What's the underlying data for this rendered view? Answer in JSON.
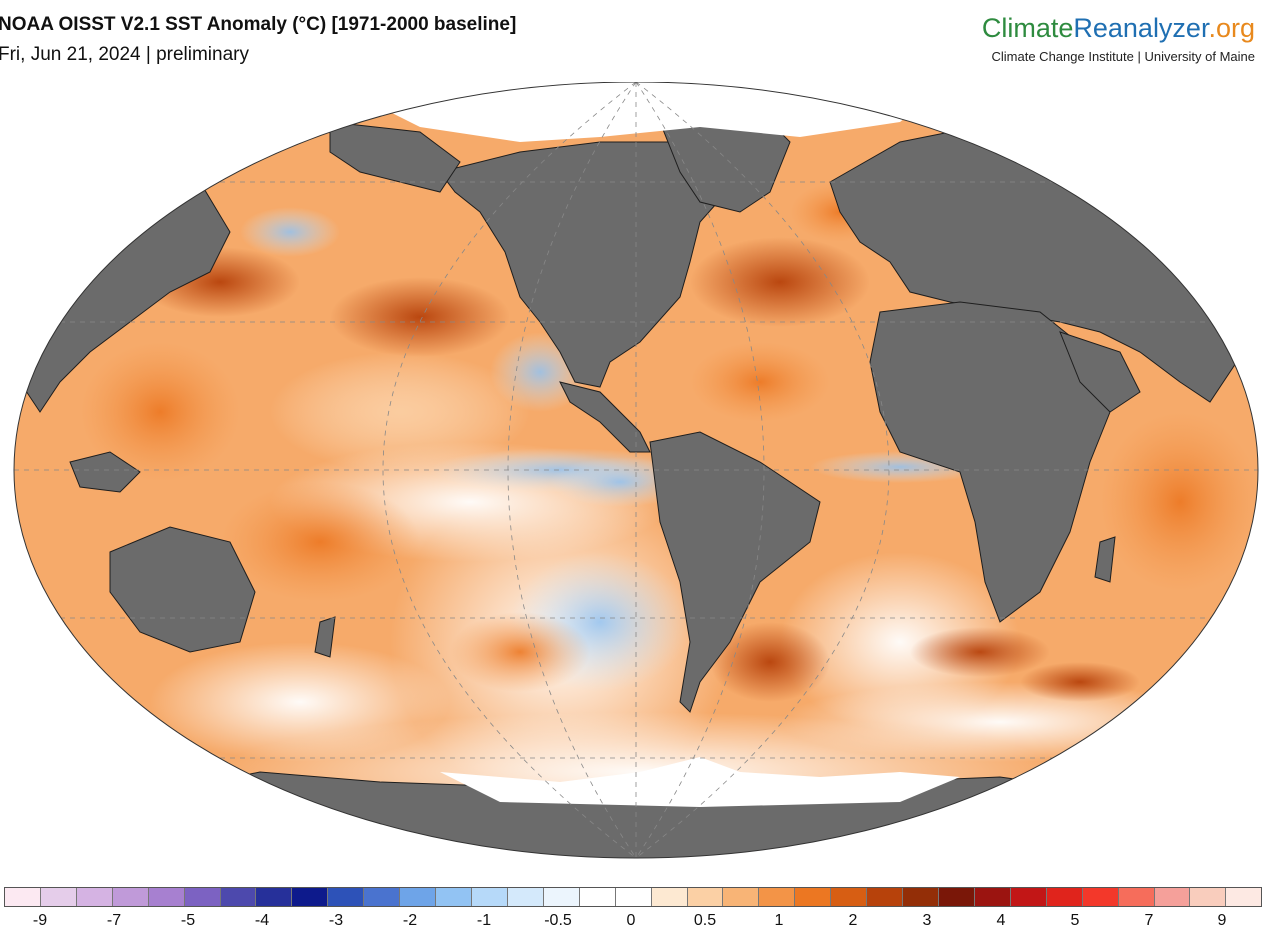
{
  "title": "NOAA OISST V2.1 SST Anomaly (°C) [1971-2000 baseline]",
  "subtitle": "Fri, Jun 21, 2024 | preliminary",
  "brand": {
    "part1": "Climate",
    "part2": "Reanalyzer",
    "part3": ".org",
    "tagline": "Climate Change Institute | University of Maine"
  },
  "colors": {
    "land": "#6b6b6b",
    "land_border": "#1e1e1e",
    "sea_ice": "#ffffff",
    "graticule": "#888888"
  },
  "colorbar": {
    "colors": [
      "#fce9f2",
      "#e5cdea",
      "#d5b3e3",
      "#c09ad9",
      "#a780d0",
      "#7c62c2",
      "#4d49ad",
      "#26309a",
      "#0d1a8c",
      "#2d52b8",
      "#4a73cf",
      "#6ea4e8",
      "#92c3f3",
      "#b6d9f9",
      "#d4e9fb",
      "#ecf5fd",
      "#ffffff",
      "#ffffff",
      "#fde9d2",
      "#fbd0a5",
      "#f8b476",
      "#f39447",
      "#ec7722",
      "#d75e13",
      "#b7420b",
      "#932e07",
      "#7a1708",
      "#9b1410",
      "#c21616",
      "#e0241c",
      "#f3382a",
      "#f66d5b",
      "#f5a09a",
      "#f9cdbd",
      "#fde9e3"
    ],
    "ticks": [
      "-9",
      "-7",
      "-5",
      "-4",
      "-3",
      "-2",
      "-1",
      "-0.5",
      "0",
      "0.5",
      "1",
      "2",
      "3",
      "4",
      "5",
      "7",
      "9"
    ]
  },
  "map_labels": {
    "land": "land",
    "sea_ice": "sea ice"
  }
}
